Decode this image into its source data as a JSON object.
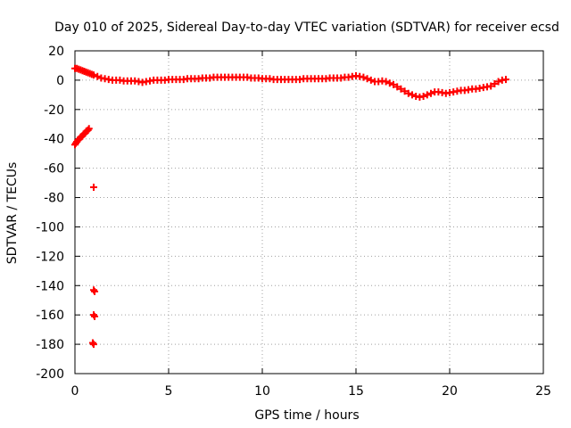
{
  "chart_data": {
    "type": "scatter",
    "title": "Day 010 of 2025, Sidereal Day-to-day VTEC variation (SDTVAR) for receiver ecsd",
    "xlabel": "GPS time / hours",
    "ylabel": "SDTVAR / TECUs",
    "xlim": [
      0,
      25
    ],
    "ylim": [
      -200,
      20
    ],
    "xticks": [
      0,
      5,
      10,
      15,
      20,
      25
    ],
    "yticks": [
      20,
      0,
      -20,
      -40,
      -60,
      -80,
      -100,
      -120,
      -140,
      -160,
      -180,
      -200
    ],
    "grid": true,
    "marker": "+",
    "color": "#ff0000",
    "series": [
      {
        "name": "main-trace",
        "x": [
          0.0,
          0.1,
          0.2,
          0.3,
          0.4,
          0.5,
          0.6,
          0.7,
          0.8,
          0.9,
          1.0,
          1.2,
          1.4,
          1.6,
          1.8,
          2.0,
          2.2,
          2.4,
          2.6,
          2.8,
          3.0,
          3.2,
          3.4,
          3.6,
          3.8,
          4.0,
          4.2,
          4.4,
          4.6,
          4.8,
          5.0,
          5.2,
          5.4,
          5.6,
          5.8,
          6.0,
          6.2,
          6.4,
          6.6,
          6.8,
          7.0,
          7.2,
          7.4,
          7.6,
          7.8,
          8.0,
          8.2,
          8.4,
          8.6,
          8.8,
          9.0,
          9.2,
          9.4,
          9.6,
          9.8,
          10.0,
          10.2,
          10.4,
          10.6,
          10.8,
          11.0,
          11.2,
          11.4,
          11.6,
          11.8,
          12.0,
          12.2,
          12.4,
          12.6,
          12.8,
          13.0,
          13.2,
          13.4,
          13.6,
          13.8,
          14.0,
          14.2,
          14.4,
          14.6,
          14.8,
          15.0,
          15.2,
          15.4,
          15.6,
          15.8,
          16.0,
          16.2,
          16.4,
          16.6,
          16.8,
          17.0,
          17.2,
          17.4,
          17.6,
          17.8,
          18.0,
          18.2,
          18.4,
          18.6,
          18.8,
          19.0,
          19.2,
          19.4,
          19.6,
          19.8,
          20.0,
          20.2,
          20.4,
          20.6,
          20.8,
          21.0,
          21.2,
          21.4,
          21.6,
          21.8,
          22.0,
          22.2,
          22.4,
          22.6,
          22.8,
          23.0
        ],
        "y": [
          8,
          8,
          7.5,
          7,
          6.5,
          6,
          5.5,
          5,
          4.5,
          4,
          3.5,
          2.5,
          1.5,
          1,
          0.5,
          0,
          0,
          0,
          -0.5,
          -0.5,
          -0.5,
          -0.5,
          -1,
          -1.5,
          -1,
          -0.5,
          0,
          0,
          0,
          0,
          0.5,
          0.5,
          0.5,
          0.5,
          0.5,
          1,
          1,
          1,
          1,
          1.5,
          1.5,
          1.5,
          2,
          2,
          2,
          2,
          2,
          2,
          2,
          2,
          2,
          2,
          1.5,
          1.5,
          1.5,
          1,
          1,
          1,
          0.5,
          0.5,
          0.5,
          0.5,
          0.5,
          0.5,
          0.5,
          0.5,
          1,
          1,
          1,
          1,
          1,
          1,
          1,
          1.5,
          1.5,
          1.5,
          1.5,
          2,
          2,
          2.5,
          3,
          2.5,
          2,
          1,
          0,
          -1,
          -1,
          -0.5,
          -1,
          -2,
          -3,
          -4.5,
          -6,
          -7.5,
          -9,
          -10,
          -11,
          -11.5,
          -11,
          -10,
          -9,
          -8,
          -8,
          -8.5,
          -9,
          -8.5,
          -8,
          -7.5,
          -7,
          -7,
          -6.5,
          -6,
          -6,
          -5.5,
          -5,
          -4.5,
          -4,
          -2.5,
          -1,
          0,
          0.5
        ]
      },
      {
        "name": "initial-ramp",
        "x": [
          0.0,
          0.05,
          0.1,
          0.15,
          0.2,
          0.25,
          0.3,
          0.35,
          0.4,
          0.45,
          0.5,
          0.55,
          0.6,
          0.65,
          0.7,
          0.75
        ],
        "y": [
          -44,
          -43,
          -42,
          -41,
          -40.5,
          -40,
          -39,
          -38.5,
          -38,
          -37,
          -36.5,
          -36,
          -35,
          -34.5,
          -34,
          -33
        ]
      },
      {
        "name": "outliers",
        "x": [
          1.0,
          1.0,
          1.05,
          1.0,
          1.05,
          0.95,
          1.0
        ],
        "y": [
          -73,
          -143,
          -144,
          -160,
          -161,
          -179,
          -180
        ]
      }
    ]
  }
}
